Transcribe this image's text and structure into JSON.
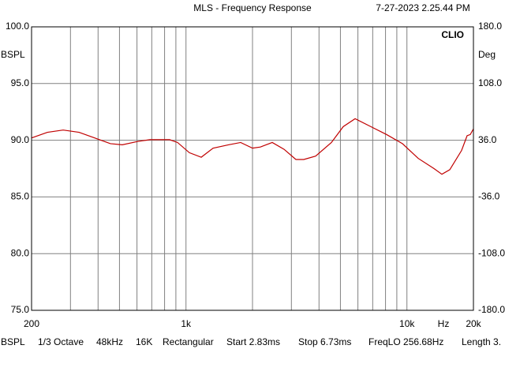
{
  "chart_data": {
    "type": "line",
    "title": "MLS - Frequency Response",
    "timestamp": "7-27-2023 2.25.44 PM",
    "brand": "CLIO",
    "ylabel": "BSPL",
    "y2label": "Deg",
    "xunit": "Hz",
    "xscale": "log",
    "grid": true,
    "xlim": [
      200,
      20000
    ],
    "xticks": [
      200,
      {
        "value": 1000,
        "label": "1k"
      },
      {
        "value": 10000,
        "label": "10k"
      },
      {
        "value": 20000,
        "label": "20k"
      }
    ],
    "xminorticks": [
      300,
      400,
      500,
      600,
      700,
      800,
      900,
      2000,
      3000,
      4000,
      5000,
      6000,
      7000,
      8000,
      9000
    ],
    "ylim": [
      75,
      100
    ],
    "yticks": [
      {
        "value": 100,
        "label": "100.0"
      },
      {
        "value": 95,
        "label": "95.0"
      },
      {
        "value": 90,
        "label": "90.0"
      },
      {
        "value": 85,
        "label": "85.0"
      },
      {
        "value": 80,
        "label": "80.0"
      },
      {
        "value": 75,
        "label": "75.0"
      }
    ],
    "y2lim": [
      -180,
      180
    ],
    "y2ticks": [
      {
        "value": 180,
        "label": "180.0"
      },
      {
        "value": 108,
        "label": "108.0"
      },
      {
        "value": 36,
        "label": "36.0"
      },
      {
        "value": -36,
        "label": "-36.0"
      },
      {
        "value": -108,
        "label": "-108.0"
      },
      {
        "value": -180,
        "label": "-180.0"
      }
    ],
    "x": [
      200,
      236,
      278,
      328,
      386,
      455,
      515,
      607,
      687,
      843,
      916,
      1036,
      1172,
      1326,
      1563,
      1768,
      2000,
      2171,
      2457,
      2779,
      3144,
      3413,
      3862,
      4552,
      5150,
      5827,
      6865,
      8093,
      9540,
      11247,
      13259,
      14394,
      15630,
      17677,
      18723,
      19350,
      20000
    ],
    "series": [
      {
        "name": "dBSPL",
        "color": "#c00000",
        "values": [
          90.2,
          90.7,
          90.9,
          90.7,
          90.2,
          89.7,
          89.6,
          89.9,
          90.05,
          90.05,
          89.8,
          88.9,
          88.5,
          89.3,
          89.6,
          89.8,
          89.3,
          89.4,
          89.8,
          89.2,
          88.3,
          88.3,
          88.6,
          89.8,
          91.2,
          91.9,
          91.2,
          90.5,
          89.7,
          88.4,
          87.5,
          87.0,
          87.4,
          89.1,
          90.4,
          90.5,
          91.0
        ]
      }
    ],
    "footer": [
      "BSPL",
      "1/3 Octave",
      "48kHz",
      "16K",
      "Rectangular",
      "Start 2.83ms",
      "Stop 6.73ms",
      "FreqLO 256.68Hz",
      "Length 3."
    ]
  }
}
